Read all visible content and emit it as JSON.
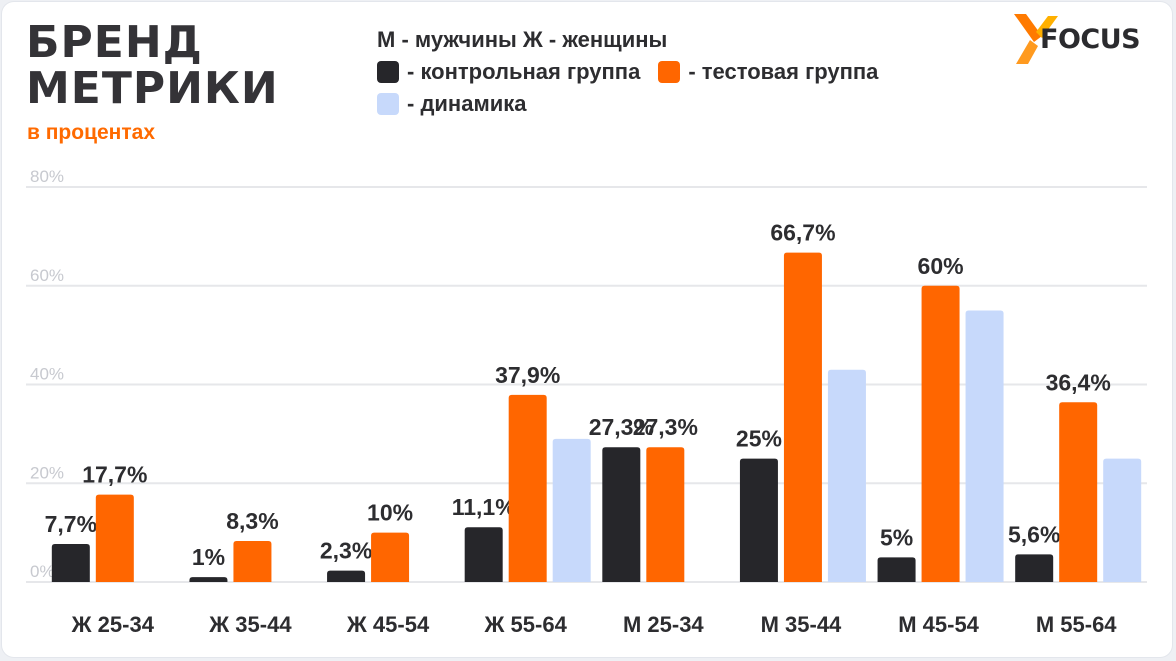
{
  "header": {
    "title_line1": "БРЕНД",
    "title_line2": "МЕТРИКИ",
    "subtitle": "в процентах"
  },
  "legend": {
    "gender_note": "М - мужчины  Ж - женщины",
    "control": "- контрольная группа",
    "test": "- тестовая группа",
    "dynamics": "- динамика"
  },
  "logo": {
    "text": "FOCUS",
    "icon": "x-logo-icon"
  },
  "colors": {
    "control": "#26262a",
    "test": "#ff6600",
    "dynamics": "#c7d9fb",
    "grid": "#e6e7ea",
    "accent": "#ff6a00"
  },
  "chart_data": {
    "type": "bar",
    "categories": [
      "Ж 25-34",
      "Ж 35-44",
      "Ж 45-54",
      "Ж 55-64",
      "М 25-34",
      "М 35-44",
      "М 45-54",
      "М 55-64"
    ],
    "yticks": [
      "0%",
      "20%",
      "40%",
      "60%",
      "80%"
    ],
    "ylim": [
      0,
      80
    ],
    "grid": true,
    "legend_position": "top",
    "series": [
      {
        "name": "контрольная группа",
        "key": "control",
        "values": [
          7.7,
          1,
          2.3,
          11.1,
          27.3,
          25,
          5,
          5.6
        ],
        "labels": [
          "7,7%",
          "1%",
          "2,3%",
          "11,1%",
          "27,3%",
          "25%",
          "5%",
          "5,6%"
        ]
      },
      {
        "name": "тестовая группа",
        "key": "test",
        "values": [
          17.7,
          8.3,
          10,
          37.9,
          27.3,
          66.7,
          60,
          36.4
        ],
        "labels": [
          "17,7%",
          "8,3%",
          "10%",
          "37,9%",
          "27,3%",
          "66,7%",
          "60%",
          "36,4%"
        ]
      },
      {
        "name": "динамика",
        "key": "dynamics",
        "values": [
          null,
          null,
          null,
          29,
          null,
          43,
          55,
          25
        ],
        "labels": [
          "",
          "",
          "",
          "",
          "",
          "",
          "",
          ""
        ]
      }
    ]
  }
}
